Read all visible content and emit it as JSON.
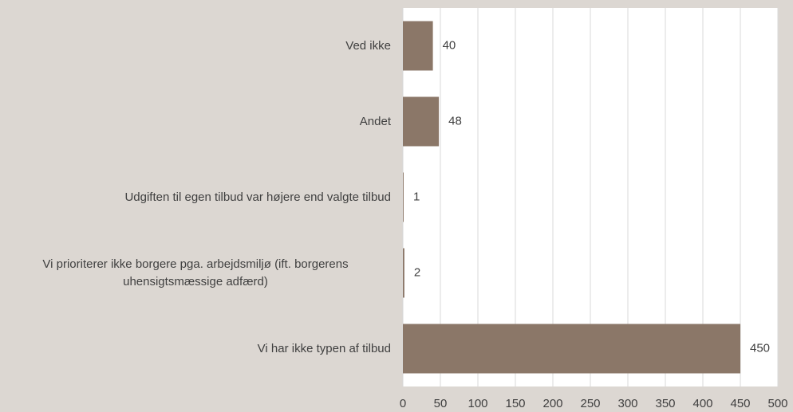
{
  "chart_data": {
    "type": "bar",
    "orientation": "horizontal",
    "categories": [
      "Ved ikke",
      "Andet",
      "Udgiften til egen tilbud var højere end valgte tilbud",
      "Vi prioriterer ikke borgere pga. arbejdsmiljø (ift. borgerens uhensigtsmæssige adfærd)",
      "Vi har ikke typen af tilbud"
    ],
    "values": [
      40,
      48,
      1,
      2,
      450
    ],
    "color": "#8b7768",
    "xlim": [
      0,
      500
    ],
    "xticks": [
      0,
      50,
      100,
      150,
      200,
      250,
      300,
      350,
      400,
      450,
      500
    ],
    "grid": true
  }
}
